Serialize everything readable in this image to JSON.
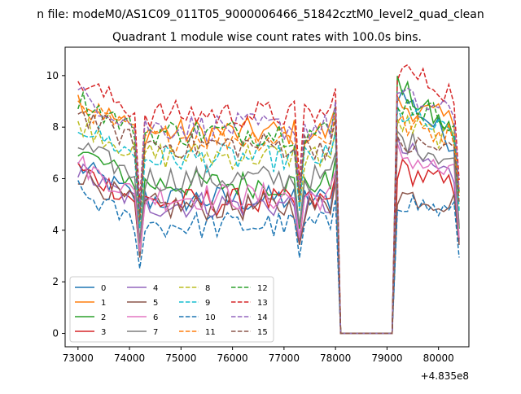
{
  "suptitle": "n file: modeM0/AS1C09_011T05_9000006466_51842cztM0_level2_quad_clean",
  "chart_data": {
    "type": "line",
    "title": "Quadrant 1 module wise count rates with 100.0s bins.",
    "xlabel": "",
    "ylabel": "",
    "x_offset_label": "+4.835e8",
    "xlim": [
      72750,
      80590
    ],
    "ylim": [
      -0.52,
      11.1
    ],
    "xticks": [
      73000,
      74000,
      75000,
      76000,
      77000,
      78000,
      79000,
      80000
    ],
    "xtick_labels": [
      "73000",
      "74000",
      "75000",
      "76000",
      "77000",
      "78000",
      "79000",
      "80000"
    ],
    "yticks": [
      0,
      2,
      4,
      6,
      8,
      10
    ],
    "ytick_labels": [
      "0",
      "2",
      "4",
      "6",
      "8",
      "10"
    ],
    "grid": false,
    "legend": {
      "placement": "lower-left",
      "columns": 4
    },
    "segments": [
      {
        "start": 73000,
        "end": 74200,
        "dip": 74200
      },
      {
        "start": 74200,
        "end": 77300,
        "dip": 77300
      },
      {
        "start": 77300,
        "end": 78100
      },
      {
        "start": 78100,
        "end": 79100,
        "flat": 0
      },
      {
        "start": 79100,
        "end": 80400
      }
    ],
    "series": [
      {
        "name": "0",
        "color": "#1f77b4",
        "dash": false,
        "level": 5.2,
        "end": 9.4
      },
      {
        "name": "1",
        "color": "#ff7f0e",
        "dash": false,
        "level": 7.8,
        "end": 8.9
      },
      {
        "name": "2",
        "color": "#2ca02c",
        "dash": false,
        "level": 5.8,
        "end": 9.6
      },
      {
        "name": "3",
        "color": "#d62728",
        "dash": false,
        "level": 5.1,
        "end": 6.4
      },
      {
        "name": "4",
        "color": "#9467bd",
        "dash": false,
        "level": 5.0,
        "end": 7.2
      },
      {
        "name": "5",
        "color": "#8c564b",
        "dash": false,
        "level": 4.9,
        "end": 5.4
      },
      {
        "name": "6",
        "color": "#e377c2",
        "dash": false,
        "level": 5.3,
        "end": 7.0
      },
      {
        "name": "7",
        "color": "#7f7f7f",
        "dash": false,
        "level": 6.0,
        "end": 7.6
      },
      {
        "name": "8",
        "color": "#bcbd22",
        "dash": true,
        "level": 6.9,
        "end": 8.2
      },
      {
        "name": "9",
        "color": "#17becf",
        "dash": true,
        "level": 6.8,
        "end": 8.6
      },
      {
        "name": "10",
        "color": "#1f77b4",
        "dash": true,
        "level": 4.2,
        "end": 5.2
      },
      {
        "name": "11",
        "color": "#ff7f0e",
        "dash": true,
        "level": 7.6,
        "end": 8.1
      },
      {
        "name": "12",
        "color": "#2ca02c",
        "dash": true,
        "level": 7.8,
        "end": 9.0
      },
      {
        "name": "13",
        "color": "#d62728",
        "dash": true,
        "level": 8.5,
        "end": 10.3
      },
      {
        "name": "14",
        "color": "#9467bd",
        "dash": true,
        "level": 8.0,
        "end": 9.2
      },
      {
        "name": "15",
        "color": "#8c564b",
        "dash": true,
        "level": 7.3,
        "end": 7.3
      }
    ]
  }
}
